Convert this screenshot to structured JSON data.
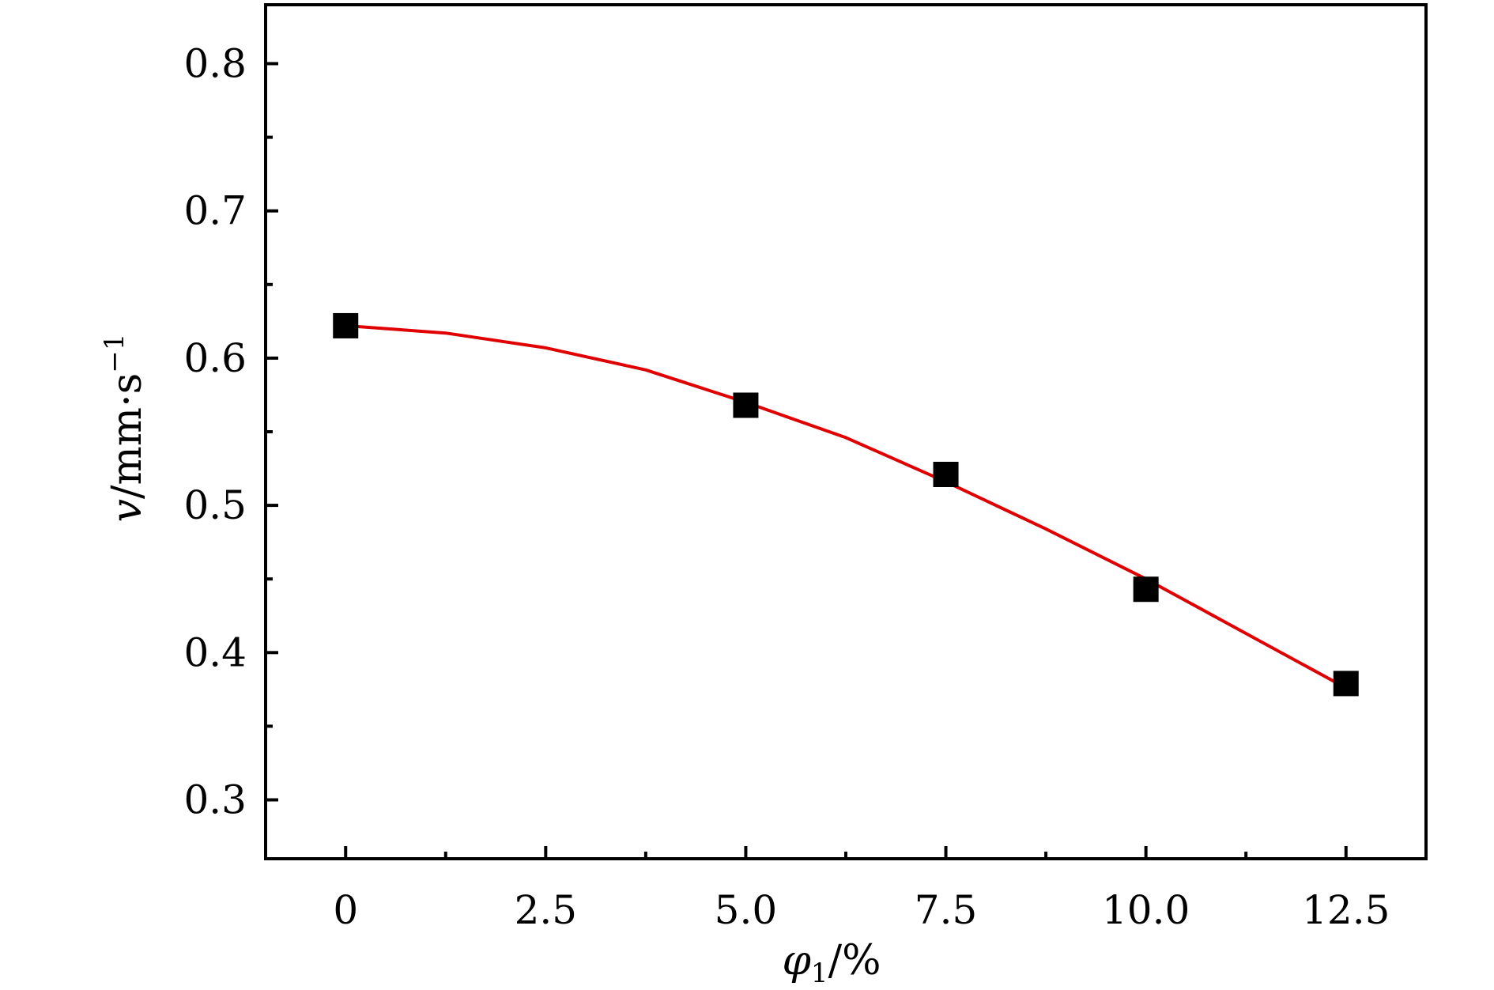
{
  "chart_data": {
    "type": "scatter",
    "title": "",
    "xlabel": {
      "symbol": "φ",
      "subscript": "1",
      "unit": "/%"
    },
    "ylabel": {
      "symbol": "v",
      "unit_prefix": "/mm·s",
      "unit_exp": "−1"
    },
    "xlim": [
      -1,
      13.5
    ],
    "ylim": [
      0.26,
      0.84
    ],
    "xticks": [
      0,
      2.5,
      5.0,
      7.5,
      10.0,
      12.5
    ],
    "xtick_labels": [
      "0",
      "2.5",
      "5.0",
      "7.5",
      "10.0",
      "12.5"
    ],
    "x_minor_ticks": [
      1.25,
      3.75,
      6.25,
      8.75,
      11.25
    ],
    "yticks": [
      0.3,
      0.4,
      0.5,
      0.6,
      0.7,
      0.8
    ],
    "ytick_labels": [
      "0.3",
      "0.4",
      "0.5",
      "0.6",
      "0.7",
      "0.8"
    ],
    "y_minor_ticks": [
      0.35,
      0.45,
      0.55,
      0.65,
      0.75
    ],
    "grid": false,
    "series": [
      {
        "kind": "points",
        "marker": "square",
        "color": "#000000",
        "x": [
          0,
          5.0,
          7.5,
          10.0,
          12.5
        ],
        "y": [
          0.622,
          0.568,
          0.521,
          0.443,
          0.379
        ]
      },
      {
        "kind": "fit-line",
        "color": "#e00000",
        "x": [
          0,
          1.25,
          2.5,
          3.75,
          5.0,
          6.25,
          7.5,
          8.75,
          10.0,
          11.25,
          12.5
        ],
        "y": [
          0.622,
          0.617,
          0.607,
          0.592,
          0.57,
          0.546,
          0.516,
          0.484,
          0.45,
          0.413,
          0.376
        ]
      }
    ]
  }
}
